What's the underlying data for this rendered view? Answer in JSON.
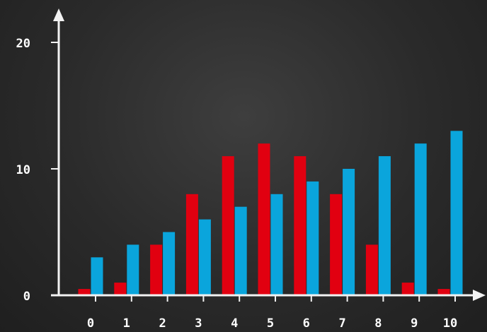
{
  "chart_data": {
    "type": "bar",
    "categories": [
      "0",
      "1",
      "2",
      "3",
      "4",
      "5",
      "6",
      "7",
      "8",
      "9",
      "10"
    ],
    "series": [
      {
        "values": [
          0.5,
          1,
          4,
          8,
          11,
          12,
          11,
          8,
          4,
          1,
          0.5
        ]
      },
      {
        "values": [
          3,
          4,
          5,
          6,
          7,
          8,
          9,
          10,
          11,
          12,
          13
        ]
      }
    ],
    "y_ticks": [
      "0",
      "10",
      "20"
    ],
    "ylim": [
      0,
      20
    ],
    "grid": false,
    "legend": "none",
    "colors": {
      "series_0": "#e10010",
      "series_1": "#0aa5dc",
      "axis": "#f2f2f2",
      "background": "#2b2b2b"
    }
  }
}
